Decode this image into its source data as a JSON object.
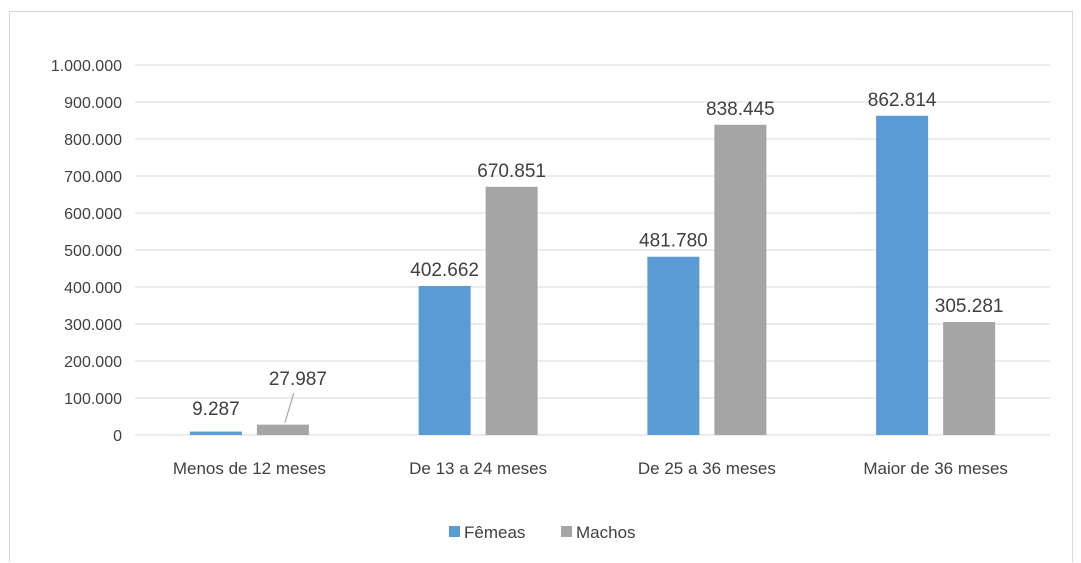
{
  "chart_data": {
    "type": "bar",
    "categories": [
      "Menos de 12 meses",
      "De 13 a 24 meses",
      "De 25 a 36 meses",
      "Maior de 36 meses"
    ],
    "series": [
      {
        "name": "Fêmeas",
        "values": [
          9287,
          402662,
          481780,
          862814
        ],
        "color": "#5b9bd5",
        "labels": [
          "9.287",
          "402.662",
          "481.780",
          "862.814"
        ]
      },
      {
        "name": "Machos",
        "values": [
          27987,
          670851,
          838445,
          305281
        ],
        "color": "#a5a5a5",
        "labels": [
          "27.987",
          "670.851",
          "838.445",
          "305.281"
        ]
      }
    ],
    "yticks": [
      {
        "value": 0,
        "label": "0"
      },
      {
        "value": 100000,
        "label": "100.000"
      },
      {
        "value": 200000,
        "label": "200.000"
      },
      {
        "value": 300000,
        "label": "300.000"
      },
      {
        "value": 400000,
        "label": "400.000"
      },
      {
        "value": 500000,
        "label": "500.000"
      },
      {
        "value": 600000,
        "label": "600.000"
      },
      {
        "value": 700000,
        "label": "700.000"
      },
      {
        "value": 800000,
        "label": "800.000"
      },
      {
        "value": 900000,
        "label": "900.000"
      },
      {
        "value": 1000000,
        "label": "1.000.000"
      }
    ],
    "ylim": [
      0,
      1000000
    ],
    "grid": true,
    "legend_position": "bottom",
    "title": "",
    "xlabel": "",
    "ylabel": ""
  }
}
